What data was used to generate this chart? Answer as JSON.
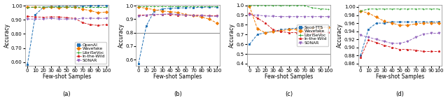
{
  "x": [
    0,
    10,
    20,
    30,
    40,
    50,
    60,
    70,
    80,
    90,
    100
  ],
  "subplot_a": {
    "ylabel": "Accuracy",
    "xlabel": "Few-shot Samples",
    "ylim": [
      0.575,
      1.005
    ],
    "yticks": [
      0.6,
      0.7,
      0.8,
      0.9,
      1.0
    ],
    "ytick_labels": [
      "0.60",
      "0.70",
      "0.80",
      "0.90",
      "1.00"
    ],
    "hline": null,
    "legend_loc": "lower right",
    "series": [
      {
        "name": "OpenAI",
        "color": "#2171b5",
        "marker": "s",
        "ls": "--",
        "data": [
          0.585,
          0.935,
          0.988,
          0.993,
          0.995,
          0.996,
          0.996,
          0.997,
          0.998,
          0.999,
          1.0
        ]
      },
      {
        "name": "Wavefake",
        "color": "#f07b00",
        "marker": "D",
        "ls": "--",
        "data": [
          0.99,
          0.99,
          0.985,
          0.988,
          0.985,
          0.988,
          0.988,
          0.975,
          0.965,
          0.95,
          0.955
        ]
      },
      {
        "name": "LibriSeVoc",
        "color": "#2ca02c",
        "marker": "+",
        "ls": "--",
        "data": [
          0.985,
          0.99,
          0.99,
          0.99,
          0.99,
          0.99,
          0.988,
          0.988,
          0.988,
          0.988,
          0.988
        ]
      },
      {
        "name": "In-the-Wild",
        "color": "#d62728",
        "marker": "*",
        "ls": "--",
        "data": [
          0.925,
          0.92,
          0.918,
          0.92,
          0.92,
          0.915,
          0.91,
          0.88,
          0.865,
          0.86,
          0.865
        ]
      },
      {
        "name": "SONAR",
        "color": "#9467bd",
        "marker": "v",
        "ls": "--",
        "data": [
          0.905,
          0.905,
          0.905,
          0.91,
          0.905,
          0.905,
          0.905,
          0.91,
          0.91,
          0.91,
          0.91
        ]
      }
    ]
  },
  "subplot_b": {
    "ylabel": "Accuracy",
    "xlabel": "Few-shot Samples",
    "ylim": [
      0.555,
      1.005
    ],
    "yticks": [
      0.6,
      0.7,
      0.8,
      0.9,
      1.0
    ],
    "ytick_labels": [
      "0.6",
      "0.7",
      "0.8",
      "0.9",
      "1.0"
    ],
    "hline": 0.8,
    "legend_loc": null,
    "series": [
      {
        "name": "OpenAI",
        "color": "#2171b5",
        "marker": "s",
        "ls": "--",
        "data": [
          0.57,
          0.85,
          0.96,
          0.975,
          0.98,
          0.982,
          0.984,
          0.985,
          0.988,
          0.99,
          0.99
        ]
      },
      {
        "name": "Wavefake",
        "color": "#f07b00",
        "marker": "D",
        "ls": "--",
        "data": [
          0.99,
          0.98,
          0.97,
          0.96,
          0.955,
          0.95,
          0.935,
          0.925,
          0.915,
          0.9,
          0.87
        ]
      },
      {
        "name": "LibriSeVoc",
        "color": "#2ca02c",
        "marker": "+",
        "ls": "--",
        "data": [
          0.995,
          0.995,
          0.995,
          0.995,
          0.995,
          0.995,
          0.995,
          0.995,
          0.995,
          0.995,
          0.995
        ]
      },
      {
        "name": "In-the-Wild",
        "color": "#d62728",
        "marker": "*",
        "ls": "--",
        "data": [
          0.93,
          0.93,
          0.933,
          0.935,
          0.935,
          0.93,
          0.93,
          0.93,
          0.928,
          0.925,
          0.925
        ]
      },
      {
        "name": "SONAR",
        "color": "#9467bd",
        "marker": "v",
        "ls": "--",
        "data": [
          0.92,
          0.93,
          0.935,
          0.935,
          0.94,
          0.935,
          0.93,
          0.925,
          0.925,
          0.922,
          0.92
        ]
      }
    ]
  },
  "subplot_c": {
    "ylabel": "Accuracy",
    "xlabel": "Few-shot Samples",
    "ylim": [
      0.38,
      1.005
    ],
    "yticks": [
      0.4,
      0.5,
      0.6,
      0.7,
      0.8,
      0.9,
      1.0
    ],
    "ytick_labels": [
      "0.4",
      "0.5",
      "0.6",
      "0.7",
      "0.8",
      "0.9",
      "1.0"
    ],
    "hline": 0.5,
    "legend_loc": "center right",
    "series": [
      {
        "name": "Socd-TTS",
        "color": "#2171b5",
        "marker": "s",
        "ls": "--",
        "data": [
          0.6,
          0.7,
          0.72,
          0.73,
          0.75,
          0.76,
          0.765,
          0.77,
          0.775,
          0.78,
          0.78
        ]
      },
      {
        "name": "Wavefake",
        "color": "#f07b00",
        "marker": "D",
        "ls": "--",
        "data": [
          0.99,
          0.76,
          0.72,
          0.73,
          0.74,
          0.75,
          0.755,
          0.76,
          0.765,
          0.77,
          0.775
        ]
      },
      {
        "name": "LibriSeVoc",
        "color": "#2ca02c",
        "marker": "+",
        "ls": "--",
        "data": [
          0.998,
          0.998,
          0.998,
          0.998,
          0.998,
          0.998,
          0.998,
          0.998,
          0.975,
          0.965,
          0.96
        ]
      },
      {
        "name": "In-the-Wild",
        "color": "#d62728",
        "marker": "*",
        "ls": "--",
        "data": [
          0.92,
          0.87,
          0.82,
          0.75,
          0.73,
          0.72,
          0.72,
          0.72,
          0.72,
          0.72,
          0.725
        ]
      },
      {
        "name": "SONAR",
        "color": "#9467bd",
        "marker": "v",
        "ls": "--",
        "data": [
          0.905,
          0.9,
          0.892,
          0.888,
          0.885,
          0.885,
          0.885,
          0.885,
          0.885,
          0.885,
          0.885
        ]
      }
    ]
  },
  "subplot_d": {
    "ylabel": "Accuracy",
    "xlabel": "Few-shot Samples",
    "ylim": [
      0.855,
      1.005
    ],
    "yticks": [
      0.86,
      0.88,
      0.9,
      0.92,
      0.94,
      0.96,
      0.98,
      1.0
    ],
    "ytick_labels": [
      "0.86",
      "0.88",
      "0.90",
      "0.92",
      "0.94",
      "0.96",
      "0.98",
      "1.00"
    ],
    "hline": null,
    "legend_loc": null,
    "series": [
      {
        "name": "OpenAI",
        "color": "#2171b5",
        "marker": "s",
        "ls": "--",
        "data": [
          0.88,
          0.945,
          0.96,
          0.96,
          0.963,
          0.963,
          0.963,
          0.963,
          0.963,
          0.963,
          0.963
        ]
      },
      {
        "name": "Wavefake",
        "color": "#f07b00",
        "marker": "D",
        "ls": "--",
        "data": [
          0.99,
          0.985,
          0.975,
          0.965,
          0.96,
          0.955,
          0.955,
          0.958,
          0.96,
          0.96,
          0.96
        ]
      },
      {
        "name": "LibriSeVoc",
        "color": "#2ca02c",
        "marker": "+",
        "ls": "--",
        "data": [
          0.99,
          0.995,
          0.995,
          0.995,
          0.995,
          0.995,
          0.995,
          0.995,
          0.995,
          0.995,
          0.995
        ]
      },
      {
        "name": "In-the-Wild",
        "color": "#d62728",
        "marker": "*",
        "ls": "--",
        "data": [
          0.875,
          0.918,
          0.912,
          0.905,
          0.9,
          0.895,
          0.895,
          0.893,
          0.89,
          0.89,
          0.89
        ]
      },
      {
        "name": "SONAR",
        "color": "#9467bd",
        "marker": "v",
        "ls": "--",
        "data": [
          0.93,
          0.925,
          0.92,
          0.915,
          0.91,
          0.91,
          0.915,
          0.925,
          0.933,
          0.935,
          0.935
        ]
      }
    ]
  },
  "subplot_labels": [
    "(a)",
    "(b)",
    "(c)",
    "(d)"
  ],
  "hline_color": "#888888",
  "fontsize": 5.5
}
